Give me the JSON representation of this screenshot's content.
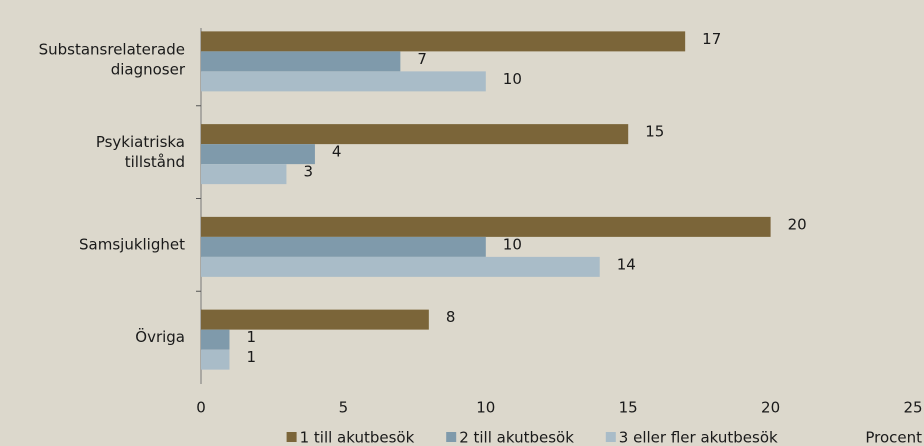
{
  "chart_data": {
    "type": "hbar",
    "categories": [
      "Substansrelaterade diagnoser",
      "Psykiatriska tillstånd",
      "Samsjuklighet",
      "Övriga"
    ],
    "series": [
      {
        "name": "1 till akutbesök",
        "color": "#7b6539",
        "values": [
          17,
          15,
          20,
          8
        ]
      },
      {
        "name": "2 till akutbesök",
        "color": "#7f9aab",
        "values": [
          7,
          4,
          10,
          1
        ]
      },
      {
        "name": "3 eller fler akutbesök",
        "color": "#a9bcc8",
        "values": [
          10,
          3,
          14,
          1
        ]
      }
    ],
    "xlabel": "Procent",
    "xlim": [
      0,
      25
    ],
    "xticks": [
      0,
      5,
      10,
      15,
      20,
      25
    ],
    "grid": false,
    "legend": "bottom"
  }
}
